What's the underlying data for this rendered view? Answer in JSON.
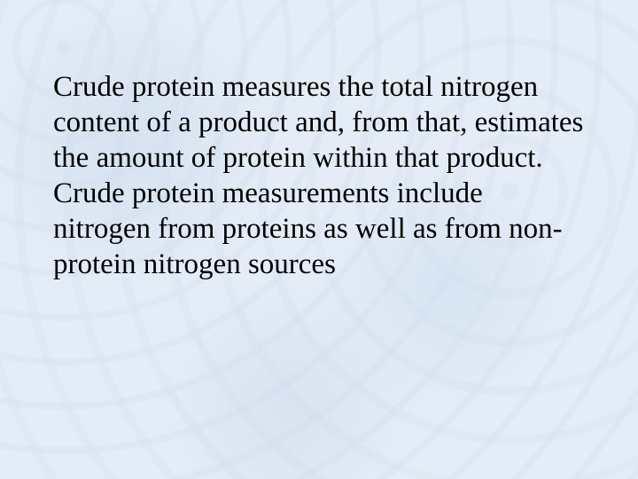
{
  "slide": {
    "body_text": "Crude protein measures the total nitrogen content of a product and, from that, estimates the amount of protein within that product. Crude protein measurements include nitrogen from proteins as well as from non-protein nitrogen sources",
    "background_color": "#e4edf7",
    "text_color": "#000000",
    "font_family": "Times New Roman",
    "font_size_pt": 25,
    "line_height": 1.21
  }
}
